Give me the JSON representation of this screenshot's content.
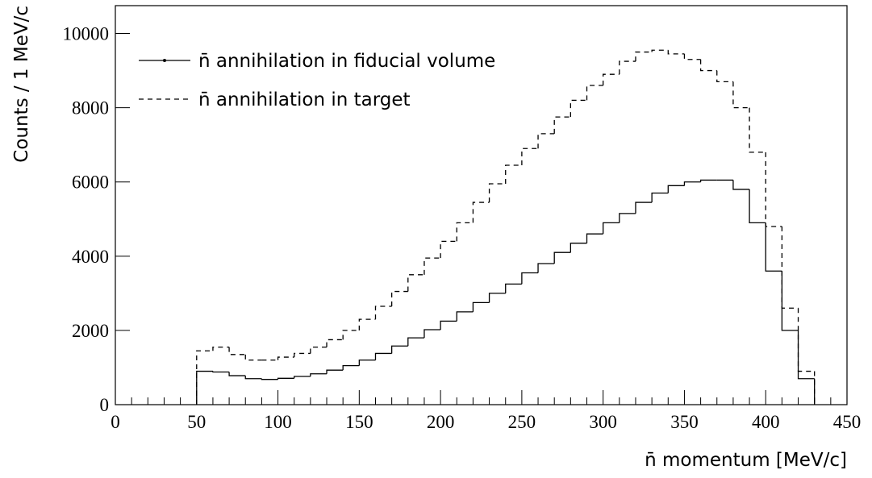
{
  "chart_data": {
    "type": "histogram",
    "xlabel": "n̄ momentum [MeV/c]",
    "ylabel": "Counts / 1 MeV/c",
    "bins": [
      50,
      60,
      70,
      80,
      90,
      100,
      110,
      120,
      130,
      140,
      150,
      160,
      170,
      180,
      190,
      200,
      210,
      220,
      230,
      240,
      250,
      260,
      270,
      280,
      290,
      300,
      310,
      320,
      330,
      340,
      350,
      360,
      370,
      380,
      390,
      400,
      410,
      420,
      430
    ],
    "series": [
      {
        "name": "n̄ annihilation in fiducial volume",
        "color": "#000000",
        "linestyle": "solid",
        "values": [
          900,
          880,
          780,
          700,
          680,
          710,
          760,
          830,
          930,
          1050,
          1200,
          1380,
          1580,
          1800,
          2020,
          2250,
          2500,
          2750,
          3000,
          3250,
          3550,
          3800,
          4100,
          4350,
          4600,
          4900,
          5150,
          5450,
          5700,
          5900,
          6000,
          6050,
          6050,
          5800,
          4900,
          3600,
          2000,
          700
        ]
      },
      {
        "name": "n̄ annihilation in target",
        "color": "#000000",
        "linestyle": "dashed",
        "values": [
          1450,
          1550,
          1350,
          1200,
          1200,
          1280,
          1380,
          1550,
          1750,
          2000,
          2300,
          2650,
          3050,
          3500,
          3950,
          4400,
          4900,
          5450,
          5950,
          6450,
          6900,
          7300,
          7750,
          8200,
          8600,
          8900,
          9250,
          9500,
          9550,
          9450,
          9300,
          9000,
          8700,
          8000,
          6800,
          4800,
          2600,
          900
        ]
      }
    ],
    "xlim": [
      0,
      450
    ],
    "ylim": [
      0,
      10750
    ],
    "xticks": [
      0,
      50,
      100,
      150,
      200,
      250,
      300,
      350,
      400,
      450
    ],
    "xminorticks": [
      10,
      20,
      30,
      40,
      60,
      70,
      80,
      90,
      110,
      120,
      130,
      140,
      160,
      170,
      180,
      190,
      210,
      220,
      230,
      240,
      260,
      270,
      280,
      290,
      310,
      320,
      330,
      340,
      360,
      370,
      380,
      390,
      410,
      420,
      430,
      440
    ],
    "yticks": [
      0,
      2000,
      4000,
      6000,
      8000,
      10000
    ],
    "legend": "upper left",
    "grid": false
  }
}
